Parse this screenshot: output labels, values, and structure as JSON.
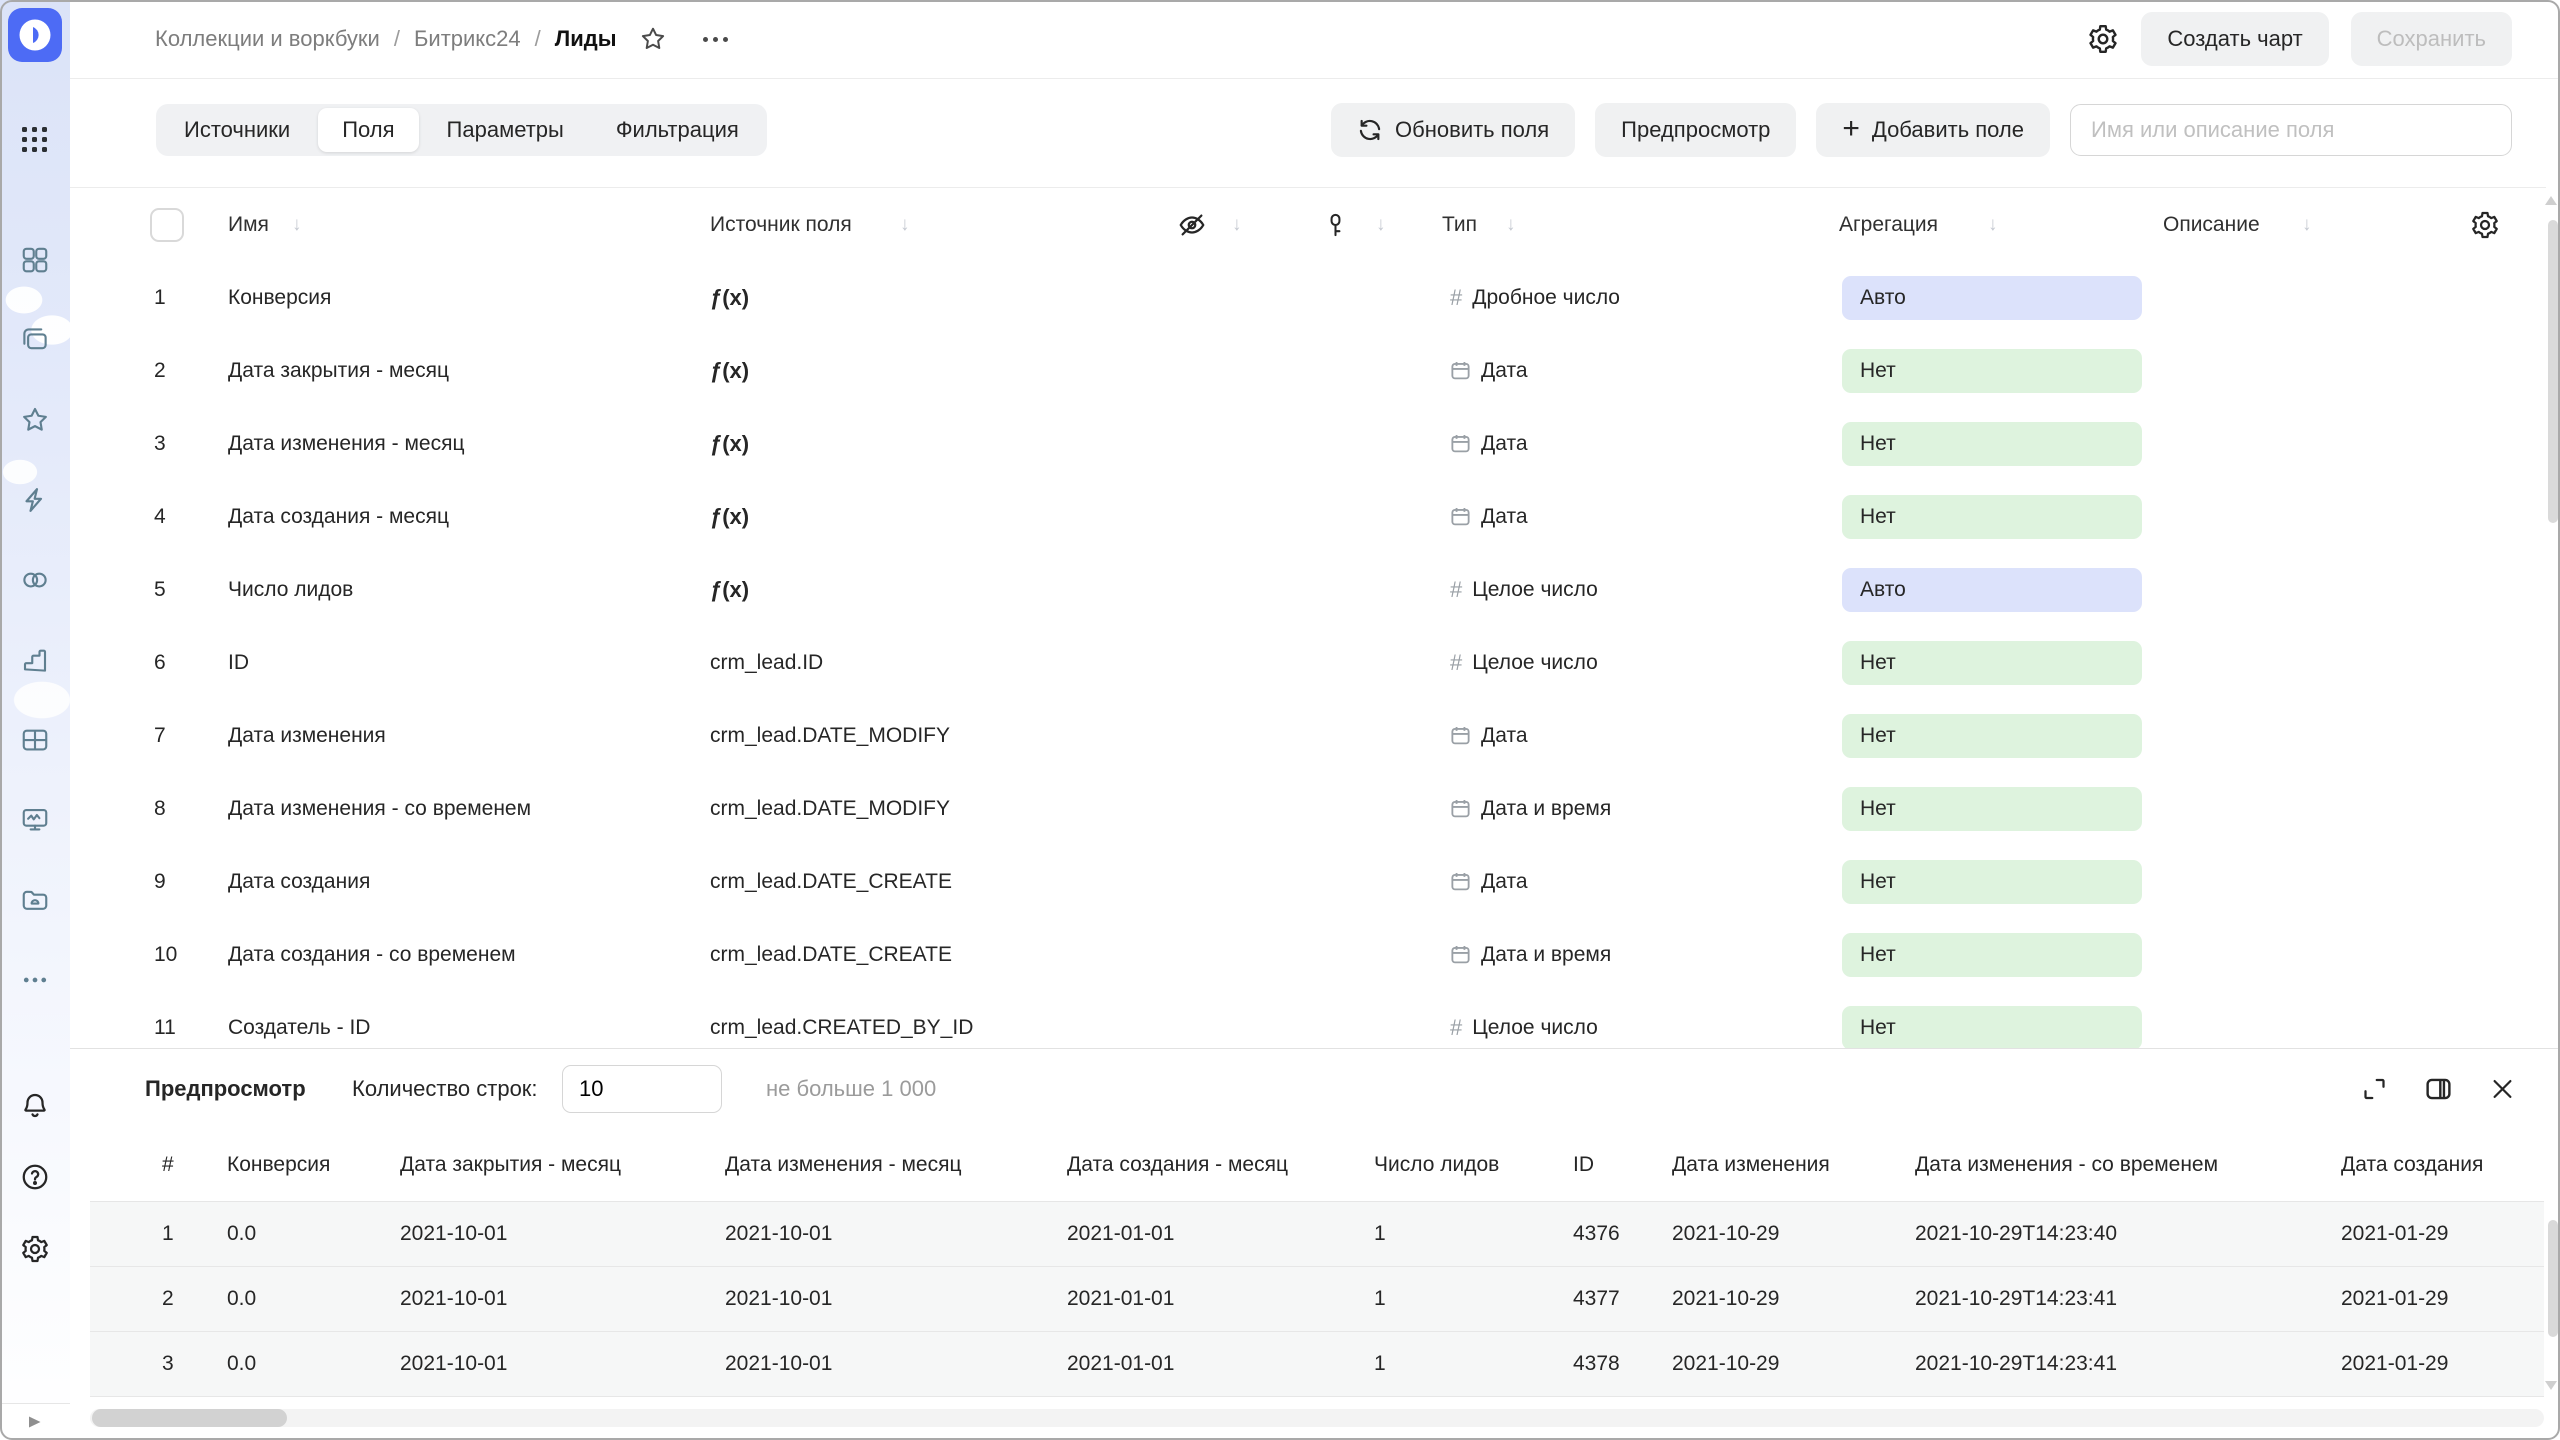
{
  "app": {
    "breadcrumb": {
      "parts": [
        "Коллекции и воркбуки",
        "Битрикс24"
      ],
      "sep": "/",
      "current": "Лиды"
    },
    "actions": {
      "create_chart": "Создать чарт",
      "save": "Сохранить"
    }
  },
  "toolbar": {
    "tabs": [
      {
        "label": "Источники",
        "active": false
      },
      {
        "label": "Поля",
        "active": true
      },
      {
        "label": "Параметры",
        "active": false
      },
      {
        "label": "Фильтрация",
        "active": false
      }
    ],
    "refresh_fields": "Обновить поля",
    "preview": "Предпросмотр",
    "add_field": "Добавить поле",
    "search_placeholder": "Имя или описание поля"
  },
  "fields_table": {
    "headers": {
      "name": "Имя",
      "source": "Источник поля",
      "type": "Тип",
      "aggregation": "Агрегация",
      "description": "Описание"
    },
    "header_icons": [
      "hidden-eye",
      "key",
      "settings-gear"
    ],
    "rows": [
      {
        "num": "1",
        "name": "Конверсия",
        "source": "ƒ(x)",
        "formula": true,
        "type": "Дробное число",
        "type_icon": "number",
        "agg": "Авто",
        "agg_style": "auto"
      },
      {
        "num": "2",
        "name": "Дата закрытия - месяц",
        "source": "ƒ(x)",
        "formula": true,
        "type": "Дата",
        "type_icon": "date",
        "agg": "Нет",
        "agg_style": "none"
      },
      {
        "num": "3",
        "name": "Дата изменения - месяц",
        "source": "ƒ(x)",
        "formula": true,
        "type": "Дата",
        "type_icon": "date",
        "agg": "Нет",
        "agg_style": "none"
      },
      {
        "num": "4",
        "name": "Дата создания - месяц",
        "source": "ƒ(x)",
        "formula": true,
        "type": "Дата",
        "type_icon": "date",
        "agg": "Нет",
        "agg_style": "none"
      },
      {
        "num": "5",
        "name": "Число лидов",
        "source": "ƒ(x)",
        "formula": true,
        "type": "Целое число",
        "type_icon": "number",
        "agg": "Авто",
        "agg_style": "auto"
      },
      {
        "num": "6",
        "name": "ID",
        "source": "crm_lead.ID",
        "formula": false,
        "type": "Целое число",
        "type_icon": "number",
        "agg": "Нет",
        "agg_style": "none"
      },
      {
        "num": "7",
        "name": "Дата изменения",
        "source": "crm_lead.DATE_MODIFY",
        "formula": false,
        "type": "Дата",
        "type_icon": "date",
        "agg": "Нет",
        "agg_style": "none"
      },
      {
        "num": "8",
        "name": "Дата изменения - со временем",
        "source": "crm_lead.DATE_MODIFY",
        "formula": false,
        "type": "Дата и время",
        "type_icon": "date",
        "agg": "Нет",
        "agg_style": "none"
      },
      {
        "num": "9",
        "name": "Дата создания",
        "source": "crm_lead.DATE_CREATE",
        "formula": false,
        "type": "Дата",
        "type_icon": "date",
        "agg": "Нет",
        "agg_style": "none"
      },
      {
        "num": "10",
        "name": "Дата создания - со временем",
        "source": "crm_lead.DATE_CREATE",
        "formula": false,
        "type": "Дата и время",
        "type_icon": "date",
        "agg": "Нет",
        "agg_style": "none"
      },
      {
        "num": "11",
        "name": "Создатель - ID",
        "source": "crm_lead.CREATED_BY_ID",
        "formula": false,
        "type": "Целое число",
        "type_icon": "number",
        "agg": "Нет",
        "agg_style": "none"
      }
    ]
  },
  "preview_panel": {
    "title": "Предпросмотр",
    "row_count_label": "Количество строк:",
    "row_count_value": "10",
    "hint": "не больше 1 000",
    "icons": [
      "expand",
      "split-view",
      "close"
    ],
    "columns": [
      "#",
      "Конверсия",
      "Дата закрытия - месяц",
      "Дата изменения - месяц",
      "Дата создания - месяц",
      "Число лидов",
      "ID",
      "Дата изменения",
      "Дата изменения - со временем",
      "Дата создания"
    ],
    "rows": [
      [
        "1",
        "0.0",
        "2021-10-01",
        "2021-10-01",
        "2021-01-01",
        "1",
        "4376",
        "2021-10-29",
        "2021-10-29T14:23:40",
        "2021-01-29"
      ],
      [
        "2",
        "0.0",
        "2021-10-01",
        "2021-10-01",
        "2021-01-01",
        "1",
        "4377",
        "2021-10-29",
        "2021-10-29T14:23:41",
        "2021-01-29"
      ],
      [
        "3",
        "0.0",
        "2021-10-01",
        "2021-10-01",
        "2021-01-01",
        "1",
        "4378",
        "2021-10-29",
        "2021-10-29T14:23:41",
        "2021-01-29"
      ]
    ]
  },
  "sidebar": {
    "icons": [
      "datalens-logo",
      "apps-grid",
      "collections-grid",
      "copies-layers",
      "star",
      "lightning",
      "datasets-circles",
      "bar-chart",
      "table",
      "monitor-pulse",
      "folder",
      "more-dots",
      "bell",
      "help",
      "settings-gear",
      "expand-arrow"
    ]
  },
  "colors": {
    "accent": "#4d6bf5",
    "badge_auto_bg": "#dce2fb",
    "badge_none_bg": "#def3de",
    "sidebar_icon": "#5f7f90"
  }
}
